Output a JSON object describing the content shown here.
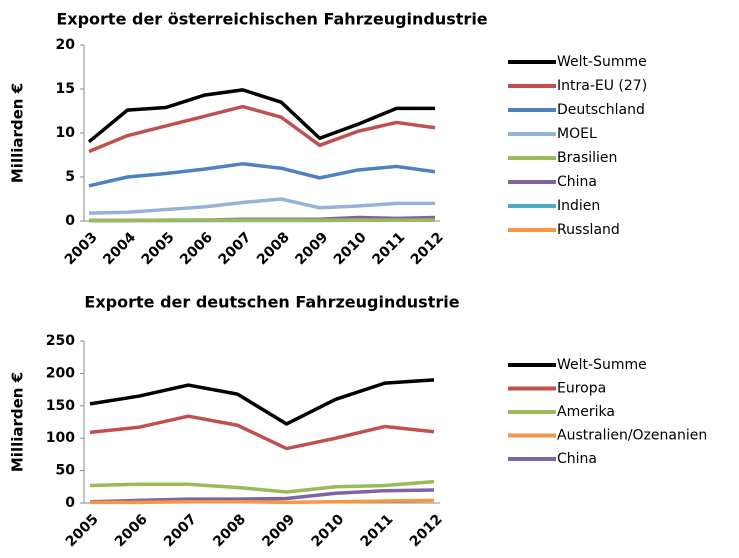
{
  "chart_data": [
    {
      "type": "line",
      "title": "Exporte der österreichischen Fahrzeugindustrie",
      "y_label": "Milliarden €",
      "categories": [
        "2003",
        "2004",
        "2005",
        "2006",
        "2007",
        "2008",
        "2009",
        "2010",
        "2011",
        "2012"
      ],
      "ylim": [
        0,
        20
      ],
      "yticks": [
        0,
        5,
        10,
        15,
        20
      ],
      "grid": false,
      "legend": "right",
      "series": [
        {
          "name": "Welt-Summe",
          "color": "#000000",
          "values": [
            9.0,
            12.6,
            12.9,
            14.3,
            14.9,
            13.5,
            9.4,
            11.0,
            12.8,
            12.8
          ]
        },
        {
          "name": "Intra-EU (27)",
          "color": "#c0504d",
          "values": [
            7.9,
            9.7,
            10.8,
            11.9,
            13.0,
            11.8,
            8.6,
            10.2,
            11.2,
            10.6
          ]
        },
        {
          "name": "Deutschland",
          "color": "#4f81bd",
          "values": [
            4.0,
            5.0,
            5.4,
            5.9,
            6.5,
            6.0,
            4.9,
            5.8,
            6.2,
            5.6
          ]
        },
        {
          "name": "MOEL",
          "color": "#95b3d7",
          "values": [
            0.9,
            1.0,
            1.3,
            1.6,
            2.1,
            2.5,
            1.5,
            1.7,
            2.0,
            2.0
          ]
        },
        {
          "name": "Brasilien",
          "color": "#9bbb59",
          "values": [
            0.05,
            0.05,
            0.1,
            0.1,
            0.1,
            0.1,
            0.1,
            0.1,
            0.1,
            0.1
          ]
        },
        {
          "name": "China",
          "color": "#8064a2",
          "values": [
            0.05,
            0.05,
            0.1,
            0.1,
            0.2,
            0.2,
            0.2,
            0.4,
            0.3,
            0.4
          ]
        },
        {
          "name": "Indien",
          "color": "#4bacc6",
          "values": [
            0.05,
            0.05,
            0.05,
            0.05,
            0.05,
            0.05,
            0.05,
            0.1,
            0.1,
            0.1
          ]
        },
        {
          "name": "Russland",
          "color": "#f79646",
          "values": [
            0.05,
            0.05,
            0.05,
            0.1,
            0.1,
            0.2,
            0.1,
            0.1,
            0.2,
            0.2
          ]
        }
      ]
    },
    {
      "type": "line",
      "title": "Exporte der deutschen Fahrzeugindustrie",
      "y_label": "Milliarden €",
      "categories": [
        "2005",
        "2006",
        "2007",
        "2008",
        "2009",
        "2010",
        "2011",
        "2012"
      ],
      "ylim": [
        0,
        250
      ],
      "yticks": [
        0,
        50,
        100,
        150,
        200,
        250
      ],
      "grid": false,
      "legend": "right",
      "series": [
        {
          "name": "Welt-Summe",
          "color": "#000000",
          "values": [
            153,
            165,
            182,
            168,
            122,
            160,
            185,
            190
          ]
        },
        {
          "name": "Europa",
          "color": "#c0504d",
          "values": [
            109,
            117,
            134,
            120,
            84,
            100,
            118,
            110
          ]
        },
        {
          "name": "Amerika",
          "color": "#9bbb59",
          "values": [
            27,
            29,
            29,
            24,
            17,
            25,
            27,
            33
          ]
        },
        {
          "name": "Australien/Ozenanien",
          "color": "#f79646",
          "values": [
            1,
            1,
            2,
            2,
            1,
            2,
            3,
            4
          ]
        },
        {
          "name": "China",
          "color": "#8064a2",
          "values": [
            2,
            4,
            6,
            6,
            7,
            15,
            19,
            20
          ]
        }
      ]
    }
  ]
}
